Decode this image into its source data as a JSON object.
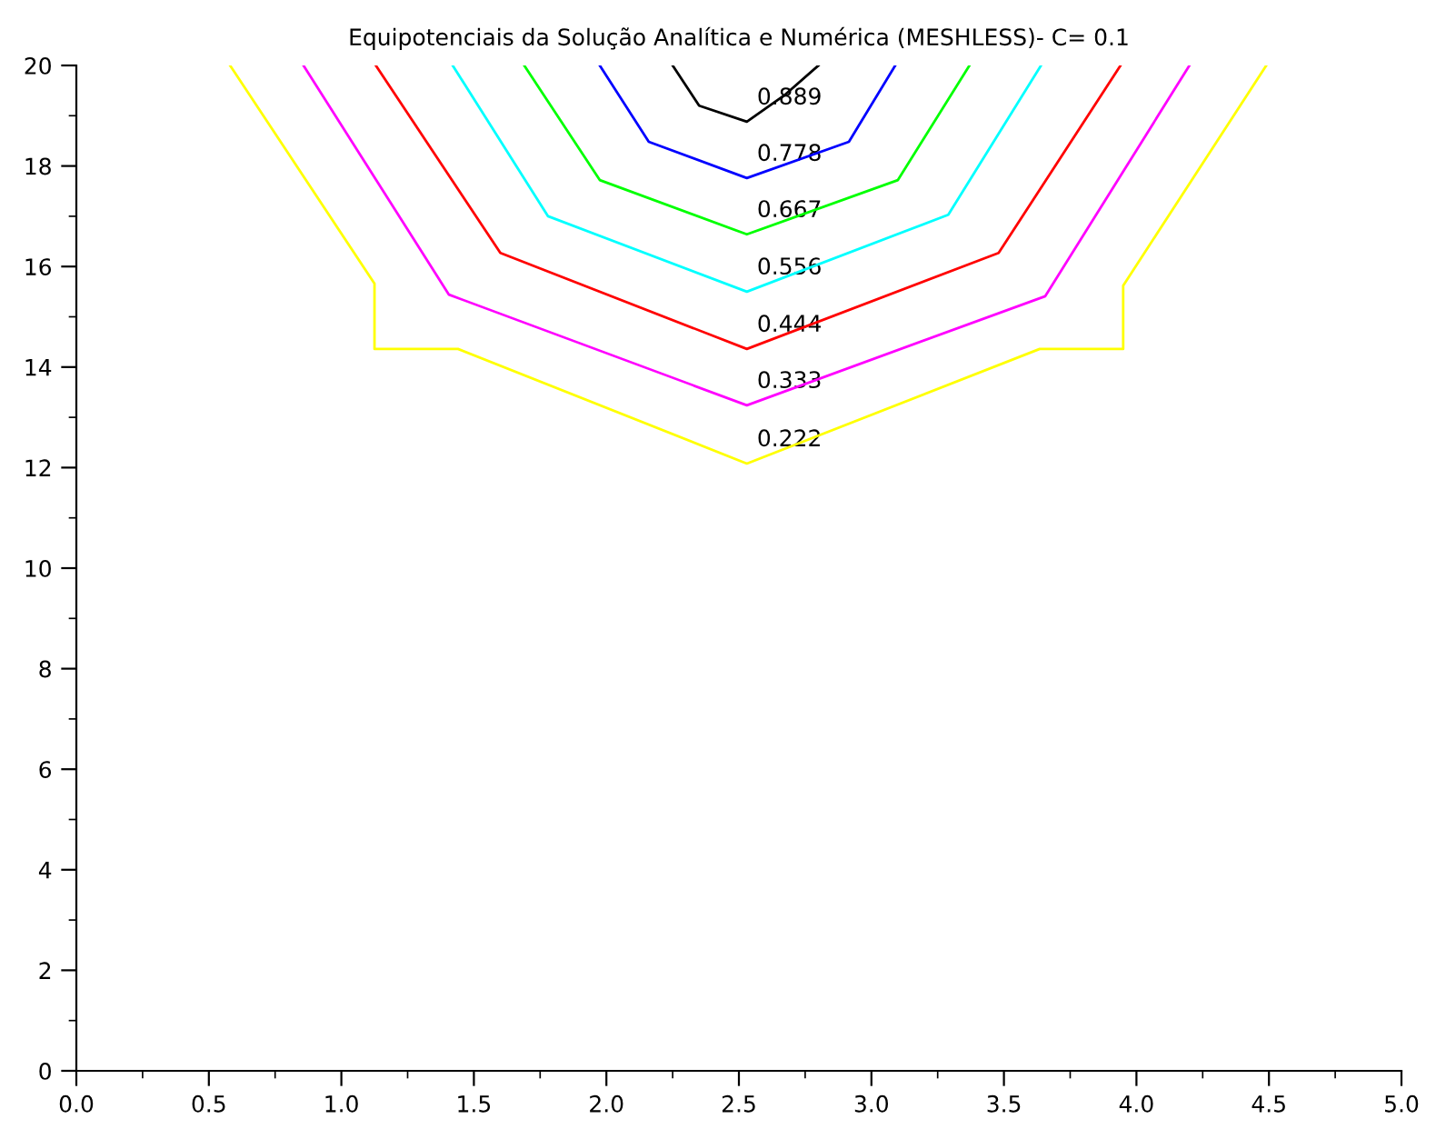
{
  "chart_data": {
    "type": "line",
    "title": "Equipotenciais da Solução Analítica e Numérica (MESHLESS)- C= 0.1",
    "series": [
      {
        "name": "0.222",
        "color": "#ffff00",
        "x": [
          0.58,
          1.125,
          1.125,
          1.44,
          2.53,
          3.635,
          3.95,
          3.95,
          4.49
        ],
        "values": [
          20,
          15.66,
          14.36,
          14.36,
          12.08,
          14.36,
          14.36,
          15.62,
          20
        ]
      },
      {
        "name": "0.333",
        "color": "#ff00ff",
        "x": [
          0.857,
          1.406,
          2.53,
          3.656,
          4.2
        ],
        "values": [
          20,
          15.44,
          13.24,
          15.41,
          20
        ]
      },
      {
        "name": "0.444",
        "color": "#ff0000",
        "x": [
          1.13,
          1.6,
          2.53,
          3.48,
          3.94
        ],
        "values": [
          20,
          16.27,
          14.36,
          16.27,
          20
        ]
      },
      {
        "name": "0.556",
        "color": "#00ffff",
        "x": [
          1.42,
          1.78,
          2.53,
          3.29,
          3.64
        ],
        "values": [
          20,
          17.0,
          15.5,
          17.03,
          20
        ]
      },
      {
        "name": "0.667",
        "color": "#00ff00",
        "x": [
          1.69,
          1.975,
          2.53,
          3.1,
          3.37
        ],
        "values": [
          20,
          17.72,
          16.64,
          17.72,
          20
        ]
      },
      {
        "name": "0.778",
        "color": "#0000ff",
        "x": [
          1.975,
          2.16,
          2.53,
          2.915,
          3.09
        ],
        "values": [
          20,
          18.48,
          17.76,
          18.48,
          20
        ]
      },
      {
        "name": "0.889",
        "color": "#000000",
        "x": [
          2.25,
          2.35,
          2.53,
          2.67,
          2.8
        ],
        "values": [
          20,
          19.2,
          18.88,
          19.4,
          20
        ]
      }
    ],
    "xlim": [
      0,
      5
    ],
    "ylim": [
      0,
      20
    ],
    "xticks": [
      {
        "value": 0,
        "label": "0.0"
      },
      {
        "value": 0.5,
        "label": "0.5"
      },
      {
        "value": 1,
        "label": "1.0"
      },
      {
        "value": 1.5,
        "label": "1.5"
      },
      {
        "value": 2,
        "label": "2.0"
      },
      {
        "value": 2.5,
        "label": "2.5"
      },
      {
        "value": 3,
        "label": "3.0"
      },
      {
        "value": 3.5,
        "label": "3.5"
      },
      {
        "value": 4,
        "label": "4.0"
      },
      {
        "value": 4.5,
        "label": "4.5"
      },
      {
        "value": 5,
        "label": "5.0"
      }
    ],
    "yticks": [
      0,
      2,
      4,
      6,
      8,
      10,
      12,
      14,
      16,
      18,
      20
    ],
    "grid": false,
    "marker": "none",
    "line_style": "solid"
  }
}
